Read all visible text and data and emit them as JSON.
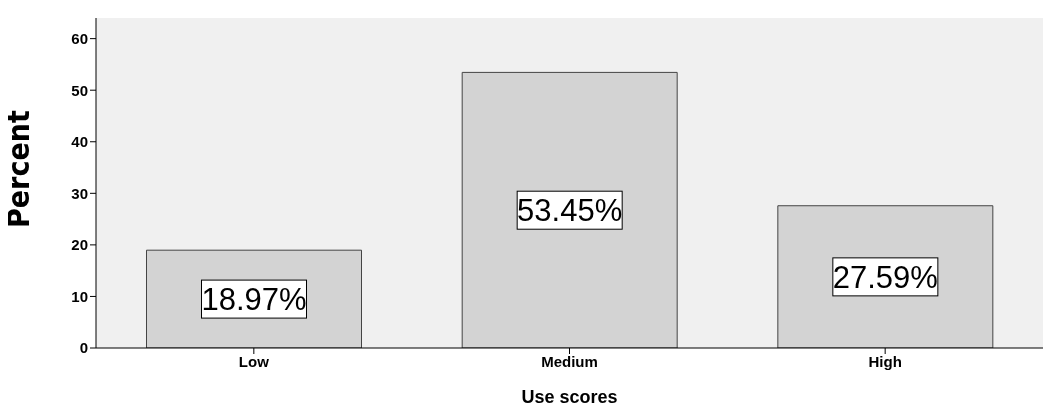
{
  "chart_data": {
    "type": "bar",
    "xlabel": "Use scores",
    "ylabel": "Percent",
    "categories": [
      "Low",
      "Medium",
      "High"
    ],
    "values": [
      18.97,
      53.45,
      27.59
    ],
    "value_labels": [
      "18.97%",
      "53.45%",
      "27.59%"
    ],
    "color": "#d3d3d3",
    "ylim": [
      0,
      64
    ],
    "yticks": [
      0,
      10,
      20,
      30,
      40,
      50,
      60
    ],
    "grid": false
  }
}
